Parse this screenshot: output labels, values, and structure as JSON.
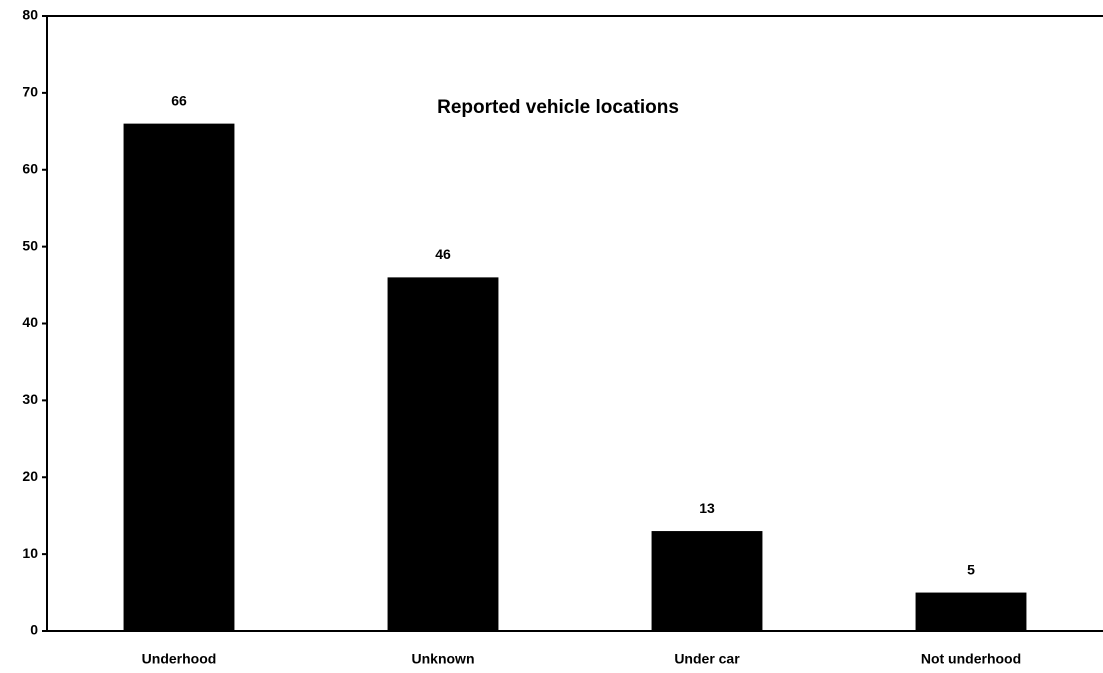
{
  "chart_data": {
    "type": "bar",
    "title": "Reported vehicle locations",
    "categories": [
      "Underhood",
      "Unknown",
      "Under car",
      "Not underhood"
    ],
    "values": [
      66,
      46,
      13,
      5
    ],
    "color": "#000000",
    "ylim": [
      0,
      80
    ],
    "yticks": [
      0,
      10,
      20,
      30,
      40,
      50,
      60,
      70,
      80
    ],
    "grid": false
  }
}
